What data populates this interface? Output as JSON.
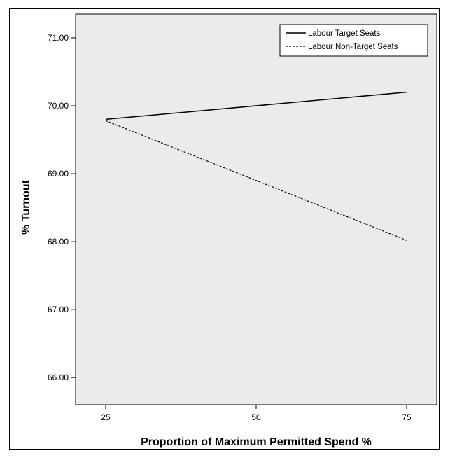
{
  "chart_data": {
    "type": "line",
    "title": "",
    "xlabel": "Proportion of Maximum Permitted Spend %",
    "ylabel": "% Turnout",
    "x": [
      25,
      75
    ],
    "x_ticks": [
      "25",
      "50",
      "75"
    ],
    "x_tick_values": [
      25,
      50,
      75
    ],
    "xlim": [
      20,
      80
    ],
    "y_ticks": [
      "66.00",
      "67.00",
      "68.00",
      "69.00",
      "70.00",
      "71.00"
    ],
    "y_tick_values": [
      66,
      67,
      68,
      69,
      70,
      71
    ],
    "ylim": [
      65.6,
      71.35
    ],
    "grid": false,
    "legend_position": "top-right",
    "background_color": "#ebebeb",
    "series": [
      {
        "name": "Labour Target Seats",
        "values": [
          69.8,
          70.2
        ],
        "line_style": "solid",
        "color": "#000000"
      },
      {
        "name": "Labour Non-Target Seats",
        "values": [
          69.78,
          68.02
        ],
        "line_style": "dashed",
        "color": "#000000"
      }
    ]
  }
}
